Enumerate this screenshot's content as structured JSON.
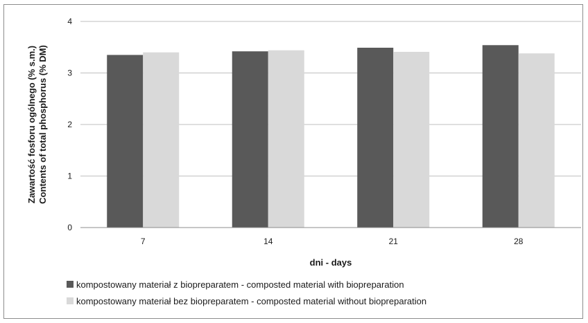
{
  "chart_data": {
    "type": "bar",
    "categories": [
      "7",
      "14",
      "21",
      "28"
    ],
    "series": [
      {
        "name": "kompostowany materiał z biopreparatem - composted material with biopreparation",
        "values": [
          3.35,
          3.42,
          3.49,
          3.54
        ],
        "color": "#595959"
      },
      {
        "name": "kompostowany materiał bez biopreparatem - composted material without biopreparation",
        "values": [
          3.4,
          3.44,
          3.41,
          3.38
        ],
        "color": "#d9d9d9"
      }
    ],
    "xlabel": "dni - days",
    "ylabel_line1": "Zawartość fosforu ogólnego (% s.m.)",
    "ylabel_line2": "Contents of total phosphorus (% DM)",
    "ylim": [
      0,
      4
    ],
    "yticks": [
      "0",
      "1",
      "2",
      "3",
      "4"
    ],
    "grid": true,
    "legend_position": "bottom"
  }
}
